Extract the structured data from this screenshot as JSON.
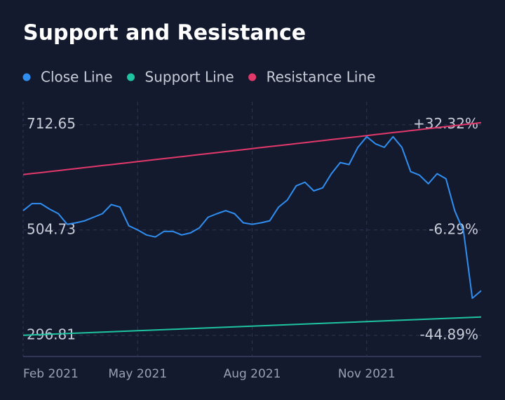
{
  "chart_data": {
    "type": "line",
    "title": "Support and Resistance",
    "categories": [
      "Feb 2021",
      null,
      null,
      null,
      null,
      null,
      null,
      null,
      null,
      null,
      null,
      null,
      null,
      "May 2021",
      null,
      null,
      null,
      null,
      null,
      null,
      null,
      null,
      null,
      null,
      null,
      null,
      "Aug 2021",
      null,
      null,
      null,
      null,
      null,
      null,
      null,
      null,
      null,
      null,
      null,
      null,
      "Nov 2021",
      null,
      null,
      null,
      null,
      null,
      null,
      null,
      null,
      null,
      null,
      null,
      null,
      null
    ],
    "series": [
      {
        "name": "Close Line",
        "color": "#2f8ef0",
        "values": [
          543,
          557,
          557,
          546,
          537,
          516,
          519,
          523,
          530,
          537,
          555,
          550,
          513,
          505,
          495,
          491,
          502,
          502,
          495,
          499,
          509,
          530,
          537,
          543,
          537,
          519,
          516,
          519,
          523,
          550,
          564,
          592,
          599,
          582,
          588,
          616,
          638,
          634,
          668,
          689,
          675,
          668,
          689,
          668,
          620,
          613,
          596,
          616,
          606,
          543,
          502,
          370,
          385
        ]
      },
      {
        "name": "Support Line",
        "color": "#1ec4a0",
        "values": [
          296.8,
          297.5,
          298.2,
          298.9,
          299.6,
          300.3,
          301.0,
          301.7,
          302.4,
          303.1,
          303.8,
          304.4,
          305.1,
          305.8,
          306.5,
          307.2,
          307.9,
          308.6,
          309.3,
          310.0,
          310.7,
          311.4,
          312.1,
          312.8,
          313.5,
          314.2,
          314.9,
          315.6,
          316.2,
          316.9,
          317.6,
          318.3,
          319.0,
          319.7,
          320.4,
          321.1,
          321.8,
          322.5,
          323.2,
          323.9,
          324.6,
          325.3,
          326.0,
          326.7,
          327.3,
          328.0,
          328.7,
          329.4,
          330.1,
          330.8,
          331.5,
          332.2,
          332.9
        ]
      },
      {
        "name": "Resistance Line",
        "color": "#e2386a",
        "values": [
          614.2,
          616.2,
          618.1,
          620.1,
          622.1,
          624.1,
          626.0,
          628.0,
          630.0,
          632.0,
          633.9,
          635.9,
          637.9,
          639.8,
          641.8,
          643.8,
          645.8,
          647.7,
          649.7,
          651.7,
          653.7,
          655.6,
          657.6,
          659.6,
          661.6,
          663.5,
          665.5,
          667.5,
          669.4,
          671.4,
          673.4,
          675.4,
          677.3,
          679.3,
          681.3,
          683.3,
          685.2,
          687.2,
          689.2,
          691.2,
          693.1,
          695.1,
          697.1,
          699.0,
          701.0,
          703.0,
          705.0,
          706.9,
          708.9,
          710.9,
          712.9,
          714.8,
          716.8
        ]
      }
    ],
    "ylim": [
      255,
      758
    ],
    "yticks": [
      296.81,
      504.73,
      712.65
    ],
    "y2lim": [
      -52.65,
      40.74
    ],
    "y2ticks": [
      {
        "value": -44.89,
        "label": "-44.89%"
      },
      {
        "value": -6.29,
        "label": "-6.29%"
      },
      {
        "value": 32.32,
        "label": "+32.32%"
      }
    ],
    "grid": true,
    "legend": "top"
  }
}
